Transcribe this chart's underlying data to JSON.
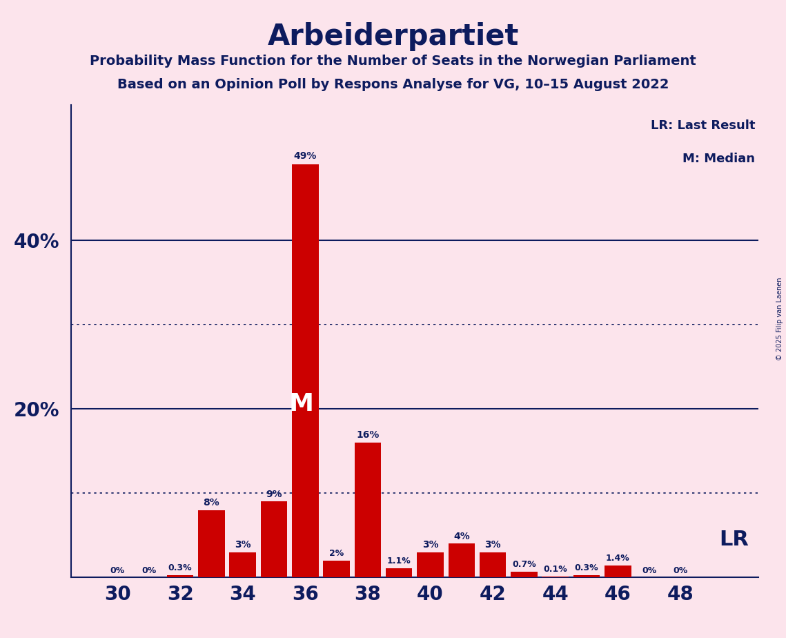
{
  "title": "Arbeiderpartiet",
  "subtitle1": "Probability Mass Function for the Number of Seats in the Norwegian Parliament",
  "subtitle2": "Based on an Opinion Poll by Respons Analyse for VG, 10–15 August 2022",
  "copyright": "© 2025 Filip van Laenen",
  "seats": [
    30,
    31,
    32,
    33,
    34,
    35,
    36,
    37,
    38,
    39,
    40,
    41,
    42,
    43,
    44,
    45,
    46,
    47,
    48
  ],
  "probabilities": [
    0.0,
    0.0,
    0.3,
    8.0,
    3.0,
    9.0,
    49.0,
    2.0,
    16.0,
    1.1,
    3.0,
    4.0,
    3.0,
    0.7,
    0.1,
    0.3,
    1.4,
    0.0,
    0.0
  ],
  "labels": [
    "0%",
    "0%",
    "0.3%",
    "8%",
    "3%",
    "9%",
    "49%",
    "2%",
    "16%",
    "1.1%",
    "3%",
    "4%",
    "3%",
    "0.7%",
    "0.1%",
    "0.3%",
    "1.4%",
    "0%",
    "0%"
  ],
  "median_seat": 36,
  "lr_seat": 48,
  "bar_color": "#cc0000",
  "background_color": "#fce4ec",
  "text_color": "#0d1b5e",
  "title_color": "#0d1b5e",
  "solid_line_color": "#0d1b5e",
  "dotted_line_color": "#0d1b5e",
  "lr_color": "#0d1b5e",
  "solid_yticks": [
    20,
    40
  ],
  "dotted_yticks": [
    10,
    30
  ],
  "ylim": [
    0,
    56
  ],
  "xlim": [
    28.5,
    50.5
  ],
  "xtick_positions": [
    30,
    32,
    34,
    36,
    38,
    40,
    42,
    44,
    46,
    48
  ]
}
